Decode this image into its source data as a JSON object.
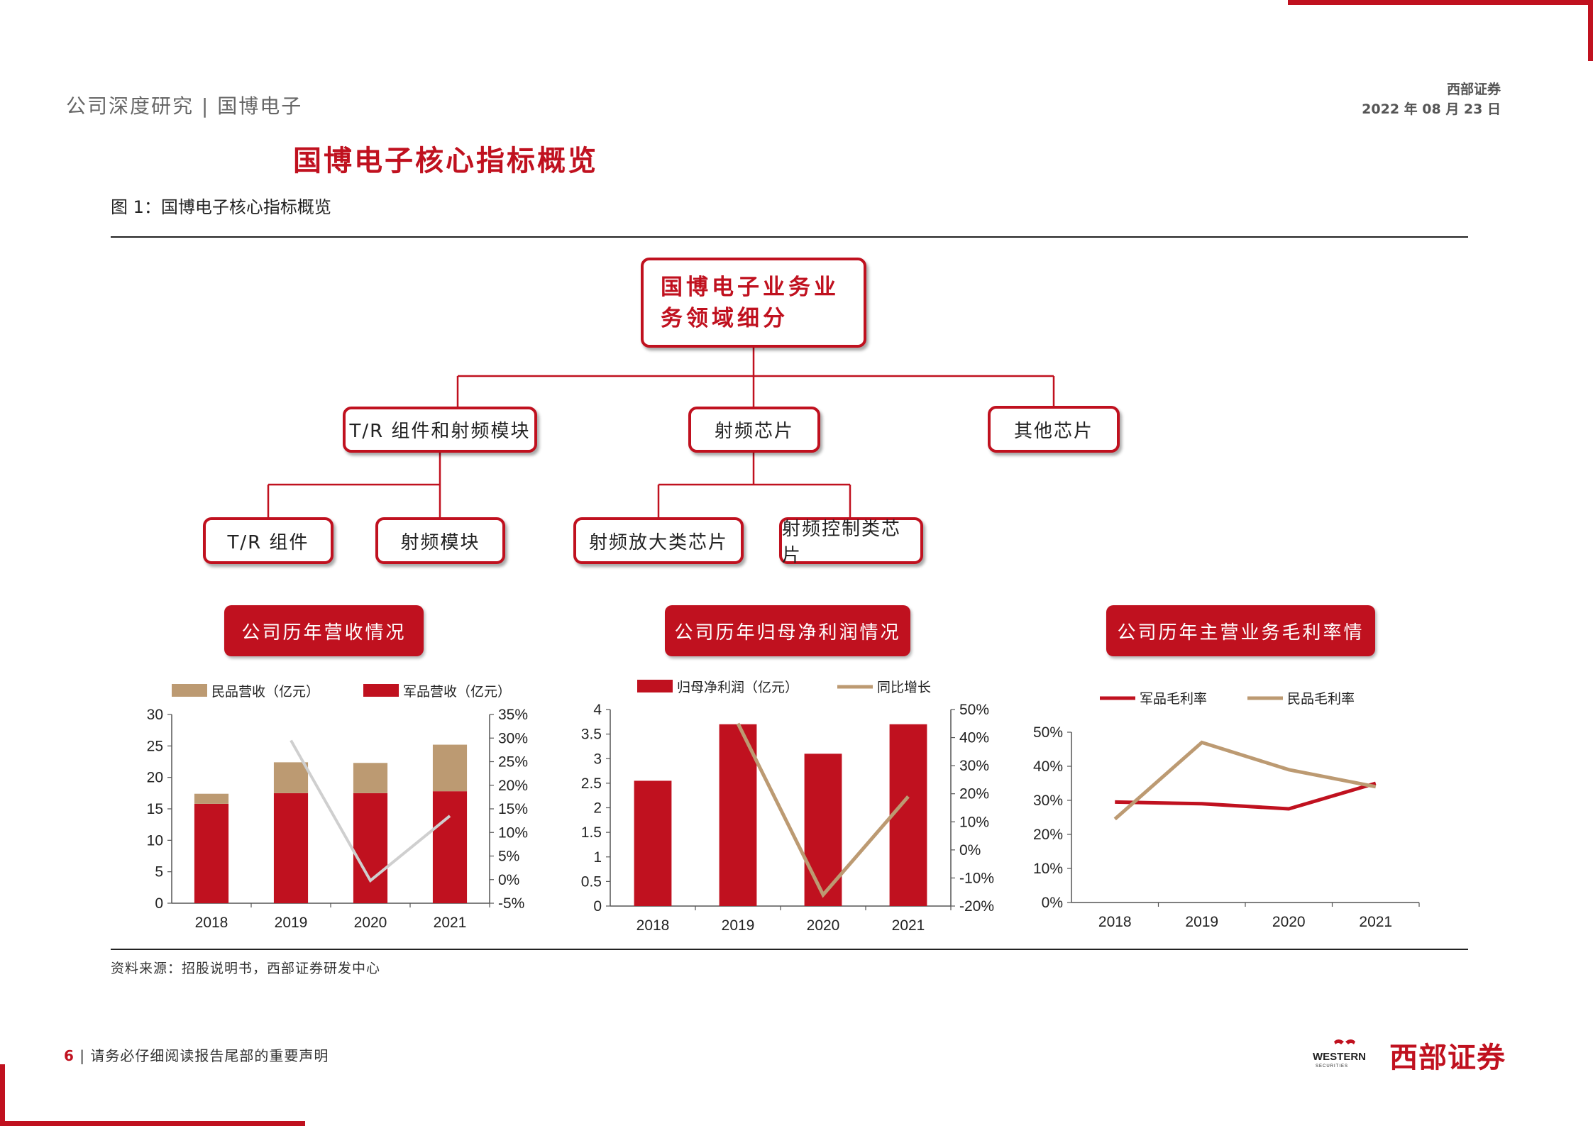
{
  "header": {
    "report_type": "公司深度研究 | 国博电子",
    "brand": "西部证券",
    "date": "2022 年 08 月 23 日"
  },
  "section_title": "国博电子核心指标概览",
  "figure_caption": "图 1：国博电子核心指标概览",
  "org_chart": {
    "root": "国博电子业务业务领域细分",
    "level1": [
      "T/R 组件和射频模块",
      "射频芯片",
      "其他芯片"
    ],
    "level2": [
      "T/R 组件",
      "射频模块",
      "射频放大类芯片",
      "射频控制类芯片"
    ]
  },
  "chart_titles": [
    "公司历年营收情况",
    "公司历年归母净利润情况",
    "公司历年主营业务毛利率情"
  ],
  "colors": {
    "brand_red": "#c0111f",
    "tan": "#bc9a72",
    "gray_line": "#cfcfcf"
  },
  "chart_data": [
    {
      "type": "bar",
      "stacked": true,
      "categories": [
        "2018",
        "2019",
        "2020",
        "2021"
      ],
      "series": [
        {
          "name": "军品营收（亿元）",
          "values": [
            15.8,
            17.5,
            17.5,
            17.8
          ]
        },
        {
          "name": "民品营收（亿元）",
          "values": [
            1.6,
            4.9,
            4.8,
            7.4
          ]
        }
      ],
      "line_series": [
        {
          "name": "",
          "values": [
            null,
            29.5,
            -0.2,
            13.5
          ]
        }
      ],
      "ylim": [
        0,
        30
      ],
      "yticks": [
        "0",
        "5",
        "10",
        "15",
        "20",
        "25",
        "30"
      ],
      "y2lim": [
        -5,
        35
      ],
      "y2ticks": [
        "-5%",
        "0%",
        "5%",
        "10%",
        "15%",
        "20%",
        "25%",
        "30%",
        "35%"
      ],
      "legend": "top"
    },
    {
      "type": "bar",
      "categories": [
        "2018",
        "2019",
        "2020",
        "2021"
      ],
      "series": [
        {
          "name": "归母净利润（亿元）",
          "values": [
            2.55,
            3.7,
            3.1,
            3.7
          ]
        }
      ],
      "line_series": [
        {
          "name": "同比增长",
          "values": [
            null,
            45,
            -16,
            19
          ]
        }
      ],
      "ylim": [
        0,
        4
      ],
      "yticks": [
        "0",
        "0.5",
        "1",
        "1.5",
        "2",
        "2.5",
        "3",
        "3.5",
        "4"
      ],
      "y2lim": [
        -20,
        50
      ],
      "y2ticks": [
        "-20%",
        "-10%",
        "0%",
        "10%",
        "20%",
        "30%",
        "40%",
        "50%"
      ],
      "legend": "top"
    },
    {
      "type": "line",
      "categories": [
        "2018",
        "2019",
        "2020",
        "2021"
      ],
      "series": [
        {
          "name": "军品毛利率",
          "values": [
            29.5,
            29,
            27.5,
            35
          ]
        },
        {
          "name": "民品毛利率",
          "values": [
            24.5,
            47,
            39,
            34
          ]
        }
      ],
      "ylim": [
        0,
        50
      ],
      "yticks": [
        "0%",
        "10%",
        "20%",
        "30%",
        "40%",
        "50%"
      ],
      "legend": "top"
    }
  ],
  "source": "资料来源：招股说明书，西部证券研发中心",
  "footer": {
    "page": "6",
    "notice": "请务必仔细阅读报告尾部的重要声明",
    "logo_en": "WESTERN",
    "logo_en_sub": "SECURITIES",
    "logo_cn": "西部证券"
  }
}
